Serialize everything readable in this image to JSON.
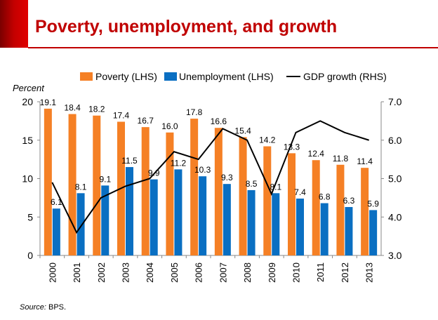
{
  "title": "Poverty, unemployment, and growth",
  "source": {
    "label": "Source:",
    "org": "BPS."
  },
  "colors": {
    "accent": "#c00000",
    "poverty": "#f58025",
    "unemployment": "#0a6fc2",
    "gdp": "#000000"
  },
  "chart_data": {
    "type": "bar",
    "categories": [
      "2000",
      "2001",
      "2002",
      "2003",
      "2004",
      "2005",
      "2006",
      "2007",
      "2008",
      "2009",
      "2010",
      "2011",
      "2012",
      "2013"
    ],
    "series": [
      {
        "name": "Poverty (LHS)",
        "kind": "bar",
        "axis": "left",
        "values": [
          19.1,
          18.4,
          18.2,
          17.4,
          16.7,
          16.0,
          17.8,
          16.6,
          15.4,
          14.2,
          13.3,
          12.4,
          11.8,
          11.4
        ],
        "labels": [
          "19.1",
          "18.4",
          "18.2",
          "17.4",
          "16.7",
          "16.0",
          "17.8",
          "16.6",
          "15.4",
          "14.2",
          "13.3",
          "12.4",
          "11.8",
          "11.4"
        ]
      },
      {
        "name": "Unemployment (LHS)",
        "kind": "bar",
        "axis": "left",
        "values": [
          6.1,
          8.1,
          9.1,
          11.5,
          9.9,
          11.2,
          10.3,
          9.3,
          8.5,
          8.1,
          7.4,
          6.8,
          6.3,
          5.9
        ],
        "labels": [
          "6.1",
          "8.1",
          "9.1",
          "11.5",
          "9.9",
          "11.2",
          "10.3",
          "9.3",
          "8.5",
          "8.1",
          "7.4",
          "6.8",
          "6.3",
          "5.9"
        ]
      },
      {
        "name": "GDP growth (RHS)",
        "kind": "line",
        "axis": "right",
        "values": [
          4.9,
          3.6,
          4.5,
          4.8,
          5.0,
          5.7,
          5.5,
          6.3,
          6.0,
          4.6,
          6.2,
          6.5,
          6.2,
          6.0
        ]
      }
    ],
    "ylabel": "Percent",
    "ylim": [
      0,
      20
    ],
    "yticks": [
      "0",
      "5",
      "10",
      "15",
      "20"
    ],
    "y2lim": [
      3.0,
      7.0
    ],
    "y2ticks": [
      "3.0",
      "4.0",
      "5.0",
      "6.0",
      "7.0"
    ],
    "legend_position": "top"
  }
}
